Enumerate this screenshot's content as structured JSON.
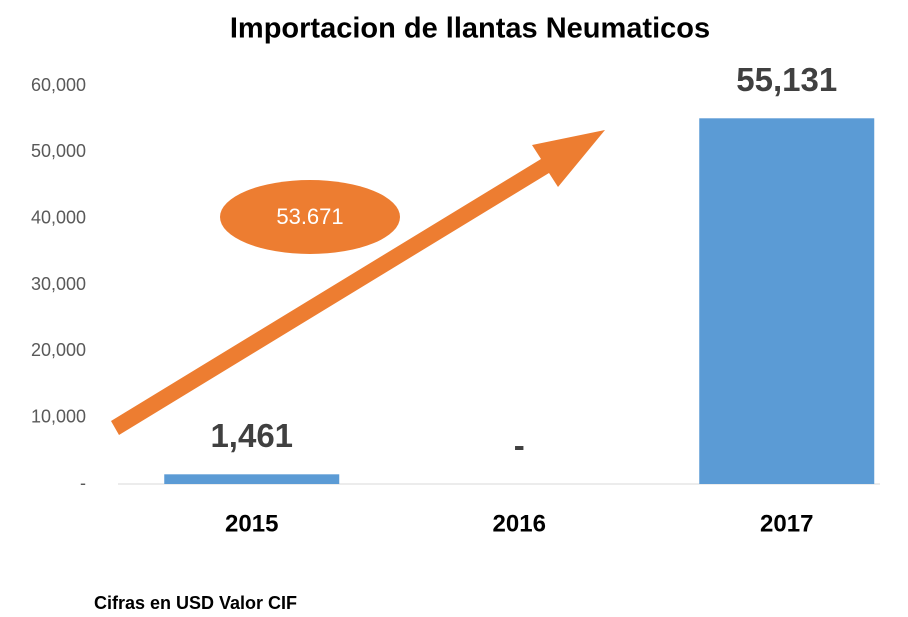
{
  "chart_data": {
    "type": "bar",
    "title": "Importacion de llantas Neumaticos",
    "categories": [
      "2015",
      "2016",
      "2017"
    ],
    "values": [
      1461,
      0,
      55131
    ],
    "value_labels": [
      "1,461",
      "-",
      "55,131"
    ],
    "color": "#5b9bd5",
    "ylim": [
      0,
      60000
    ],
    "yticks": [
      {
        "value": 0,
        "label": "-"
      },
      {
        "value": 10000,
        "label": "10,000"
      },
      {
        "value": 20000,
        "label": "20,000"
      },
      {
        "value": 30000,
        "label": "30,000"
      },
      {
        "value": 40000,
        "label": "40,000"
      },
      {
        "value": 50000,
        "label": "50,000"
      },
      {
        "value": 60000,
        "label": "60,000"
      }
    ],
    "grid": false,
    "annotation": "53.671",
    "note": "Cifras en USD Valor CIF"
  }
}
